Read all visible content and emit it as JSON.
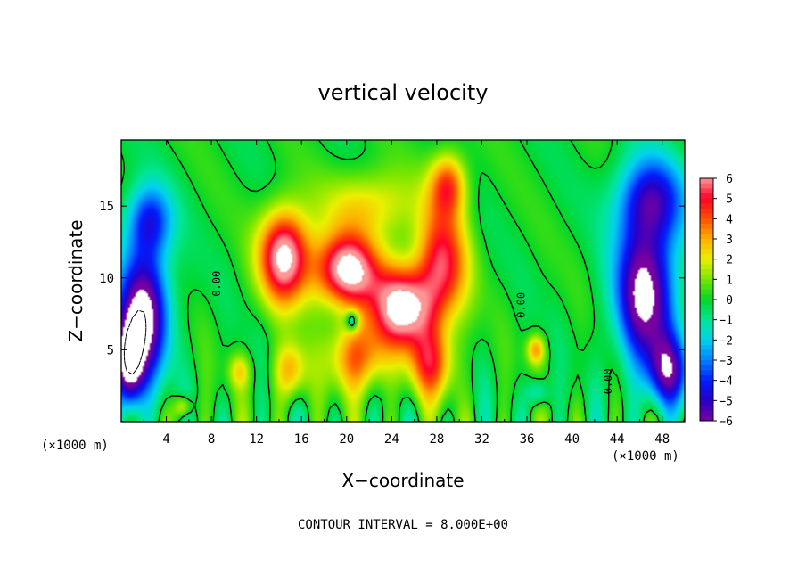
{
  "chart_data": {
    "type": "heatmap",
    "title": "vertical velocity",
    "xlabel": "X−coordinate",
    "ylabel": "Z−coordinate",
    "x_unit": "(×1000 m)",
    "y_unit": "(×1000 m)",
    "xlim": [
      0,
      50
    ],
    "ylim": [
      0,
      19.6
    ],
    "x_ticks": [
      4,
      8,
      12,
      16,
      20,
      24,
      28,
      32,
      36,
      40,
      44,
      48
    ],
    "y_ticks": [
      5,
      10,
      15
    ],
    "x_tick_labels": [
      "4",
      "8",
      "12",
      "16",
      "20",
      "24",
      "28",
      "32",
      "36",
      "40",
      "44",
      "48"
    ],
    "y_tick_labels": [
      "5",
      "10",
      "15"
    ],
    "colorbar": {
      "min": -6,
      "max": 6,
      "ticks": [
        6,
        5,
        4,
        3,
        2,
        1,
        0,
        -1,
        -2,
        -3,
        -4,
        -5,
        -6
      ],
      "tick_labels": [
        "6",
        "5",
        "4",
        "3",
        "2",
        "1",
        "0",
        "−1",
        "−2",
        "−3",
        "−4",
        "−5",
        "−6"
      ]
    },
    "contour_labels": [
      "0.00",
      "0.00",
      "0.00"
    ],
    "contour_interval": "CONTOUR INTERVAL = 8.000E+00",
    "features": [
      {
        "kind": "updraft",
        "x": 14.5,
        "z": 11.5,
        "w": 7,
        "sx": 2.2,
        "sz": 3.2
      },
      {
        "kind": "updraft",
        "x": 20,
        "z": 10.5,
        "w": 7,
        "sx": 2.8,
        "sz": 2.5
      },
      {
        "kind": "updraft",
        "x": 25,
        "z": 8,
        "w": 7,
        "sx": 2.8,
        "sz": 2.8
      },
      {
        "kind": "updraft",
        "x": 28.5,
        "z": 11,
        "w": 5,
        "sx": 2.2,
        "sz": 4
      },
      {
        "kind": "updraft",
        "x": 29,
        "z": 16.5,
        "w": 4,
        "sx": 1.6,
        "sz": 2.2
      },
      {
        "kind": "updraft",
        "x": 21,
        "z": 4.5,
        "w": 4,
        "sx": 2.5,
        "sz": 2.5
      },
      {
        "kind": "updraft",
        "x": 27.5,
        "z": 4,
        "w": 4,
        "sx": 2,
        "sz": 2.5
      },
      {
        "kind": "updraft",
        "x": 15,
        "z": 3.5,
        "w": 3,
        "sx": 1.5,
        "sz": 2
      },
      {
        "kind": "updraft",
        "x": 22,
        "z": 15,
        "w": 2.5,
        "sx": 4,
        "sz": 2.5
      },
      {
        "kind": "updraft",
        "x": 36.8,
        "z": 5,
        "w": 3,
        "sx": 0.8,
        "sz": 1
      },
      {
        "kind": "updraft",
        "x": 5.5,
        "z": 1,
        "w": 2.5,
        "sx": 0.8,
        "sz": 0.8
      },
      {
        "kind": "updraft",
        "x": 10.5,
        "z": 3.5,
        "w": 2,
        "sx": 1,
        "sz": 1.2
      },
      {
        "kind": "downdraft",
        "x": 2,
        "z": 7.5,
        "w": -7,
        "sx": 2.2,
        "sz": 4.5
      },
      {
        "kind": "downdraft",
        "x": 0.7,
        "z": 4,
        "w": -7,
        "sx": 1.3,
        "sz": 3
      },
      {
        "kind": "downdraft",
        "x": 2.5,
        "z": 14,
        "w": -4,
        "sx": 2,
        "sz": 2.5
      },
      {
        "kind": "downdraft",
        "x": 46.5,
        "z": 9,
        "w": -7,
        "sx": 2.6,
        "sz": 5
      },
      {
        "kind": "downdraft",
        "x": 48.5,
        "z": 3.5,
        "w": -5,
        "sx": 1.8,
        "sz": 2.5
      },
      {
        "kind": "downdraft",
        "x": 47,
        "z": 15.5,
        "w": -4.5,
        "sx": 3,
        "sz": 3
      },
      {
        "kind": "downdraft",
        "x": 37,
        "z": 2,
        "w": -2,
        "sx": 1,
        "sz": 1
      },
      {
        "kind": "downdraft",
        "x": 20.5,
        "z": 7,
        "w": -3.5,
        "sx": 0.6,
        "sz": 0.7
      }
    ]
  }
}
